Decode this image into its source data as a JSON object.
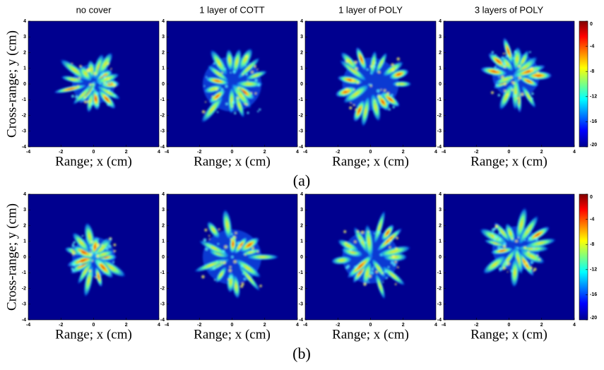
{
  "panel_titles": [
    "no cover",
    "1 layer of COTT",
    "1 layer of POLY",
    "3 layers of POLY"
  ],
  "rows": [
    {
      "label": "(a)"
    },
    {
      "label": "(b)"
    }
  ],
  "x_axis_label": "Range; x (cm)",
  "y_axis_label": "Cross-range; y (cm)",
  "x_ticks": [
    -4,
    -2,
    0,
    2,
    4
  ],
  "y_ticks": [
    4,
    3,
    2,
    1,
    0,
    -1,
    -2,
    -3,
    -4
  ],
  "colorbar_ticks": [
    0,
    -4,
    -8,
    -12,
    -16,
    -20
  ]
}
